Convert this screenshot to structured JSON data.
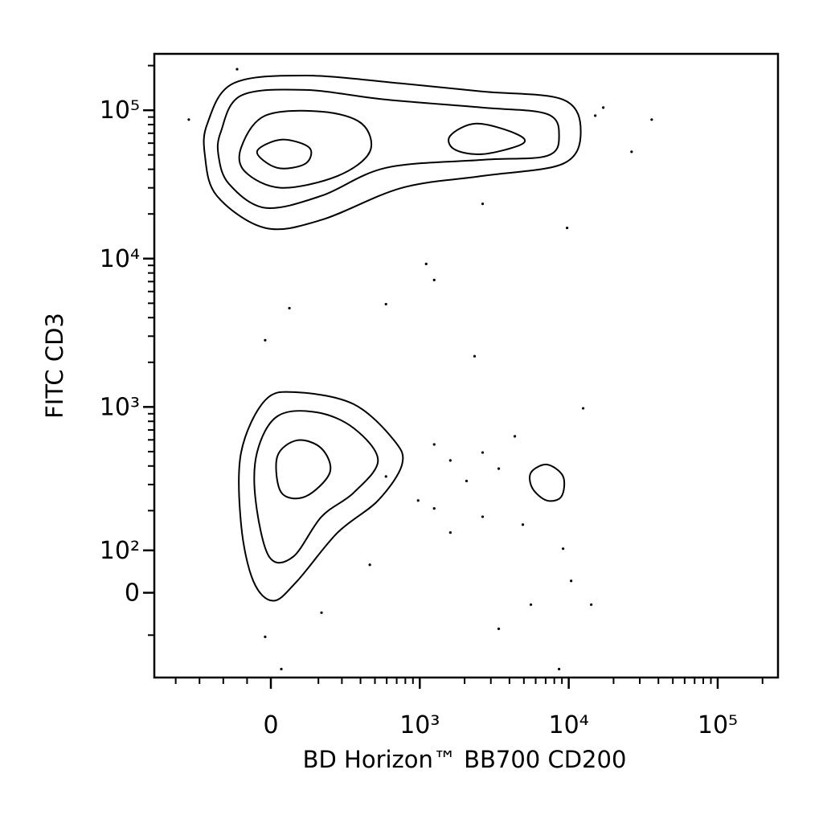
{
  "chart_data": {
    "type": "contour",
    "xlabel": "BD Horizon™ BB700 CD200",
    "ylabel": "FITC CD3",
    "color": "#000000",
    "xscale": "biexponential",
    "yscale": "biexponential",
    "xlim": [
      -490,
      254000
    ],
    "ylim": [
      -200,
      240000
    ],
    "xticks": [
      0,
      {
        "value": 1000,
        "label": "10³"
      },
      {
        "value": 10000,
        "label": "10⁴"
      },
      {
        "value": 100000,
        "label": "10⁵"
      }
    ],
    "yticks": [
      0,
      {
        "value": 100,
        "label": "10²"
      },
      {
        "value": 1000,
        "label": "10³"
      },
      {
        "value": 10000,
        "label": "10⁴"
      },
      {
        "value": 100000,
        "label": "10⁵"
      }
    ],
    "xminorticks": [
      -400,
      -300,
      -200,
      -100,
      200,
      300,
      400,
      500,
      600,
      700,
      800,
      900,
      2000,
      3000,
      4000,
      5000,
      6000,
      7000,
      8000,
      9000,
      20000,
      30000,
      40000,
      50000,
      60000,
      70000,
      80000,
      90000,
      200000
    ],
    "yminorticks": [
      -100,
      200,
      300,
      400,
      500,
      600,
      700,
      800,
      900,
      2000,
      3000,
      4000,
      5000,
      6000,
      7000,
      8000,
      9000,
      20000,
      30000,
      40000,
      50000,
      60000,
      70000,
      80000,
      90000,
      200000
    ],
    "contours": [
      {
        "x": [
          -267,
          -159,
          145,
          760,
          2642,
          9162,
          12050,
          9162,
          2642,
          760,
          213,
          -24,
          -227,
          -277
        ],
        "y": [
          81280,
          151400,
          171400,
          151400,
          133700,
          118000,
          71800,
          43600,
          36100,
          30000,
          18240,
          16100,
          26500,
          49300
        ]
      },
      {
        "x": [
          -210,
          -125,
          145,
          593,
          2642,
          7145,
          8610,
          7145,
          2642,
          593,
          213,
          -24,
          -176,
          -220
        ],
        "y": [
          71800,
          125600,
          137000,
          118000,
          104200,
          94400,
          67400,
          49300,
          46300,
          40900,
          26500,
          22000,
          31900,
          49300
        ]
      },
      {
        "x": [
          -125,
          -24,
          213,
          408,
          462,
          281,
          44,
          -108
        ],
        "y": [
          55900,
          92000,
          97900,
          81280,
          52500,
          36100,
          30000,
          38500
        ]
      },
      {
        "x": [
          1604,
          2388,
          4345,
          4920,
          2642,
          1706
        ],
        "y": [
          67400,
          81280,
          70000,
          59600,
          50600,
          54600
        ]
      },
      {
        "x": [
          -58,
          44,
          162,
          145,
          27
        ],
        "y": [
          52500,
          63400,
          55900,
          43600,
          40900
        ]
      },
      {
        "x": [
          -125,
          -24,
          111,
          361,
          671,
          760,
          524,
          281,
          111,
          10,
          -74,
          -125
        ],
        "y": [
          493,
          1109,
          1256,
          1042,
          596,
          409,
          234,
          142,
          28,
          -19,
          28,
          161
        ]
      },
      {
        "x": [
          -58,
          27,
          193,
          361,
          524,
          361,
          213,
          94,
          -7,
          -64
        ],
        "y": [
          493,
          865,
          920,
          718,
          436,
          265,
          182,
          85,
          85,
          234
        ]
      },
      {
        "x": [
          27,
          111,
          213,
          248,
          145,
          44
        ],
        "y": [
          463,
          596,
          525,
          361,
          249,
          265
        ]
      },
      {
        "x": [
          5572,
          7145,
          9162,
          8933,
          7145,
          5715
        ],
        "y": [
          361,
          409,
          340,
          249,
          234,
          282
        ]
      }
    ],
    "points": {
      "x": [
        1250,
        1604,
        2642,
        3388,
        2061,
        4345,
        975,
        2642,
        4920,
        9162,
        10380,
        3388,
        5572,
        14160,
        1250,
        1604,
        593,
        462,
        213,
        -24,
        44,
        78,
        -24,
        2333,
        593,
        1104,
        1250,
        15070,
        36060,
        26420,
        2642,
        9750,
        12500,
        8610,
        -345,
        -142,
        17060
      ],
      "y": [
        559,
        436,
        493,
        384,
        317,
        634,
        234,
        182,
        161,
        104,
        28,
        -85,
        -28,
        -28,
        207,
        142,
        340,
        66,
        -47,
        -104,
        -180,
        4634,
        2818,
        2198,
        4932,
        9204,
        7178,
        92000,
        86500,
        52500,
        23400,
        16100,
        979,
        -180,
        86500,
        189200,
        104200
      ]
    }
  }
}
